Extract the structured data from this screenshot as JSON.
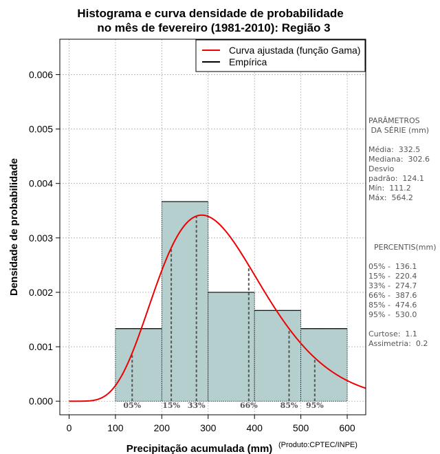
{
  "chart_data": {
    "type": "bar",
    "title": [
      "Histograma e curva densidade de probabilidade",
      "no mês de fevereiro (1981-2010): Região 3"
    ],
    "xlabel": "Precipitação acumulada (mm)",
    "ylabel": "Densidade de probabilidade",
    "credit": "(Produto:CPTEC/INPE)",
    "xlim": [
      -20,
      640
    ],
    "ylim": [
      -0.00025,
      0.00665
    ],
    "xticks": [
      0,
      100,
      200,
      300,
      400,
      500,
      600
    ],
    "yticks": [
      0.0,
      0.001,
      0.002,
      0.003,
      0.004,
      0.005,
      0.006
    ],
    "ytick_labels": [
      "0.000",
      "0.001",
      "0.002",
      "0.003",
      "0.004",
      "0.005",
      "0.006"
    ],
    "grid": true,
    "bins": [
      {
        "from": 100,
        "to": 200,
        "density": 0.001333
      },
      {
        "from": 200,
        "to": 300,
        "density": 0.003667
      },
      {
        "from": 300,
        "to": 400,
        "density": 0.002
      },
      {
        "from": 400,
        "to": 500,
        "density": 0.001667
      },
      {
        "from": 500,
        "to": 600,
        "density": 0.001333
      }
    ],
    "gamma_fit": {
      "mean": 332.5,
      "sd": 124.1
    },
    "percentiles": [
      {
        "label": "05%",
        "value": 136.1
      },
      {
        "label": "15%",
        "value": 220.4
      },
      {
        "label": "33%",
        "value": 274.7
      },
      {
        "label": "66%",
        "value": 387.6
      },
      {
        "label": "85%",
        "value": 474.6
      },
      {
        "label": "95%",
        "value": 530.0
      }
    ],
    "legend": {
      "position": "top-right",
      "entries": [
        {
          "label": "Curva ajustada (função Gama)",
          "color": "#ee0000"
        },
        {
          "label": "Empírica",
          "color": "#000000"
        }
      ]
    },
    "colors": {
      "bar_fill": "#b5cece",
      "curve": "#ee0000",
      "grid": "#b0b0b0",
      "percentile_line": "#555555"
    }
  },
  "side_panel": {
    "params_title": [
      "PARÂMETROS",
      " DA SÉRIE (mm)"
    ],
    "params": [
      "Média:  332.5",
      "Mediana:  302.6",
      "Desvio",
      "padrão:  124.1",
      "Mín:  111.2",
      "Máx:  564.2"
    ],
    "percentis_title": "PERCENTIS(mm)",
    "percentis": [
      "05% -  136.1",
      "15% -  220.4",
      "33% -  274.7",
      "66% -  387.6",
      "85% -  474.6",
      "95% -  530.0"
    ],
    "stats": [
      "Curtose:  1.1",
      "Assimetria:  0.2"
    ]
  }
}
